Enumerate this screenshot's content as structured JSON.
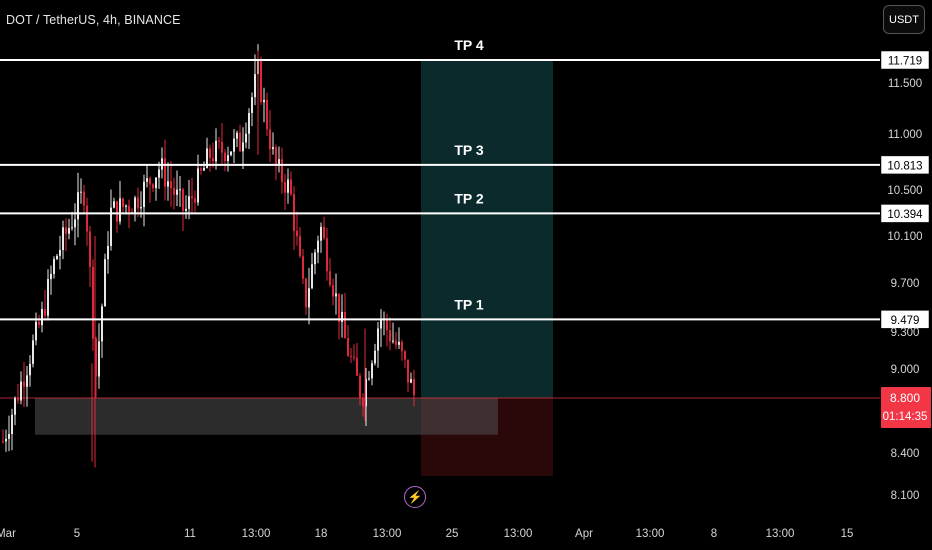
{
  "header": {
    "symbol": "DOT / TetherUS, 4h, BINANCE",
    "currency_button": "USDT"
  },
  "colors": {
    "background": "#000000",
    "up_candle": "#e8e8e8",
    "down_candle": "#e0283a",
    "level_line": "#ffffff",
    "profit_zone": "#0b2a2b",
    "loss_zone": "#2a0709",
    "support_zone": "#3a3a3a",
    "current_price_bg": "#f23645"
  },
  "icons": {
    "alert": "lightning-icon"
  },
  "chart_data": {
    "type": "candlestick",
    "symbol": "DOT / TetherUS",
    "interval": "4h",
    "exchange": "BINANCE",
    "y_ticks": [
      "11.500",
      "11.000",
      "10.500",
      "10.100",
      "9.700",
      "9.300",
      "9.000",
      "8.400",
      "8.100"
    ],
    "x_ticks": [
      "Mar",
      "5",
      "11",
      "13:00",
      "18",
      "13:00",
      "25",
      "13:00",
      "Apr",
      "13:00",
      "8",
      "13:00",
      "15"
    ],
    "levels": [
      {
        "label": "TP 4",
        "price": "11.719"
      },
      {
        "label": "TP 3",
        "price": "10.813"
      },
      {
        "label": "TP 2",
        "price": "10.394"
      },
      {
        "label": "TP 1",
        "price": "9.479"
      }
    ],
    "current_price": "8.800",
    "countdown": "01:14:35",
    "entry_price": 8.8,
    "profit_target": 11.719,
    "stop_price": 8.1,
    "support_zone": [
      8.5,
      8.8
    ]
  }
}
